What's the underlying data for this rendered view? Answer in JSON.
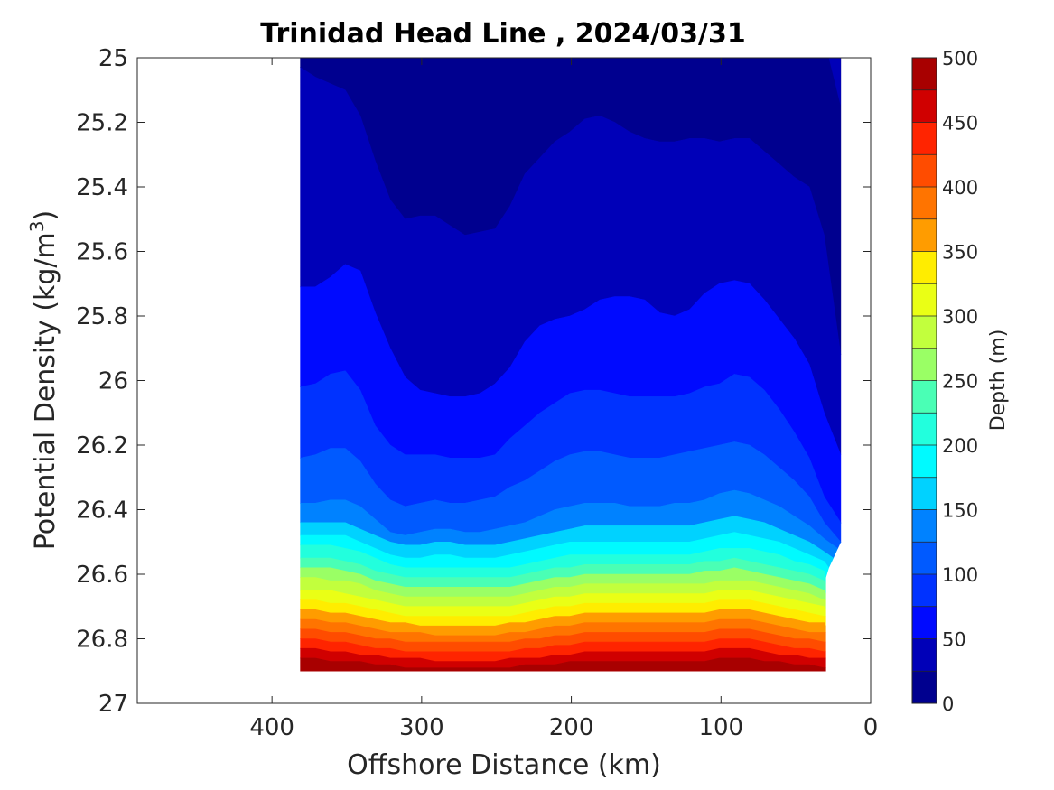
{
  "chart_data": {
    "type": "contour",
    "title": "Trinidad Head Line , 2024/03/31",
    "xlabel": "Offshore Distance (km)",
    "ylabel_main": "Potential Density (kg/m",
    "ylabel_sup": "3",
    "ylabel_close": ")",
    "xlim": [
      490,
      0
    ],
    "ylim": [
      25,
      27
    ],
    "x_reversed": true,
    "y_reversed": true,
    "xticks": [
      400,
      300,
      200,
      100,
      0
    ],
    "xtick_labels": [
      "400",
      "300",
      "200",
      "100",
      "0"
    ],
    "yticks": [
      25,
      25.2,
      25.4,
      25.6,
      25.8,
      26,
      26.2,
      26.4,
      26.6,
      26.8,
      27
    ],
    "ytick_labels": [
      "25",
      "25.2",
      "25.4",
      "25.6",
      "25.8",
      "26",
      "26.2",
      "26.4",
      "26.6",
      "26.8",
      "27"
    ],
    "colorbar": {
      "label": "Depth (m)",
      "min": 0,
      "max": 500,
      "ticks": [
        0,
        50,
        100,
        150,
        200,
        250,
        300,
        350,
        400,
        450,
        500
      ],
      "tick_labels": [
        "0",
        "50",
        "100",
        "150",
        "200",
        "250",
        "300",
        "350",
        "400",
        "450",
        "500"
      ],
      "levels": [
        0,
        25,
        50,
        75,
        100,
        125,
        150,
        175,
        200,
        225,
        250,
        275,
        300,
        325,
        350,
        375,
        400,
        425,
        450,
        475,
        500
      ],
      "colors": [
        "#00008f",
        "#0000b8",
        "#0000e0",
        "#000aff",
        "#0032ff",
        "#005aff",
        "#0082ff",
        "#00aaff",
        "#00d2ff",
        "#00faff",
        "#22ffdd",
        "#4affb5",
        "#72ff8d",
        "#9aff65",
        "#c2ff3d",
        "#eaff15",
        "#ffed00",
        "#ffc400",
        "#ff9c00",
        "#ff7400",
        "#ff4c00",
        "#ff2400",
        "#f90000",
        "#d00000",
        "#a80000"
      ]
    },
    "data_extent": {
      "x_offshore_edge": 381,
      "x_shore_top": 20,
      "x_shore_bottom": 30,
      "shore_notch_sigma": [
        26.5,
        26.6
      ],
      "sigma_top": 25,
      "sigma_bottom": 26.9
    },
    "isopycnal_depths": {
      "x": [
        381,
        371,
        361,
        351,
        341,
        331,
        321,
        311,
        301,
        291,
        281,
        271,
        261,
        251,
        241,
        231,
        221,
        211,
        201,
        191,
        181,
        171,
        161,
        151,
        141,
        131,
        121,
        111,
        101,
        91,
        81,
        71,
        61,
        51,
        41,
        31,
        21
      ],
      "contours": [
        {
          "depth": 25,
          "sigma": [
            25.03,
            25.06,
            25.08,
            25.1,
            25.18,
            25.32,
            25.44,
            25.5,
            25.49,
            25.49,
            25.52,
            25.55,
            25.54,
            25.53,
            25.46,
            25.36,
            25.31,
            25.26,
            25.23,
            25.19,
            25.18,
            25.2,
            25.23,
            25.25,
            25.26,
            25.26,
            25.25,
            25.25,
            25.26,
            25.25,
            25.25,
            25.29,
            25.33,
            25.37,
            25.4,
            25.55,
            25.92
          ]
        },
        {
          "depth": 50,
          "sigma": [
            25.71,
            25.71,
            25.68,
            25.64,
            25.66,
            25.79,
            25.9,
            25.99,
            26.03,
            26.04,
            26.05,
            26.05,
            26.04,
            26.01,
            25.96,
            25.88,
            25.83,
            25.81,
            25.8,
            25.78,
            25.75,
            25.74,
            25.74,
            25.75,
            25.79,
            25.8,
            25.78,
            25.73,
            25.7,
            25.69,
            25.7,
            25.75,
            25.81,
            25.87,
            25.95,
            26.1,
            26.23
          ]
        },
        {
          "depth": 75,
          "sigma": [
            26.02,
            26.01,
            25.98,
            25.97,
            26.03,
            26.14,
            26.2,
            26.23,
            26.23,
            26.23,
            26.24,
            26.24,
            26.24,
            26.23,
            26.18,
            26.14,
            26.1,
            26.07,
            26.04,
            26.03,
            26.03,
            26.04,
            26.05,
            26.05,
            26.05,
            26.05,
            26.04,
            26.02,
            26.01,
            25.98,
            25.99,
            26.03,
            26.09,
            26.16,
            26.24,
            26.36,
            26.44
          ]
        },
        {
          "depth": 100,
          "sigma": [
            26.24,
            26.23,
            26.21,
            26.21,
            26.25,
            26.32,
            26.37,
            26.39,
            26.38,
            26.37,
            26.38,
            26.38,
            26.37,
            26.36,
            26.33,
            26.31,
            26.28,
            26.25,
            26.23,
            26.22,
            26.22,
            26.23,
            26.24,
            26.24,
            26.24,
            26.23,
            26.22,
            26.21,
            26.2,
            26.19,
            26.2,
            26.23,
            26.27,
            26.31,
            26.36,
            26.44,
            26.5
          ]
        },
        {
          "depth": 125,
          "sigma": [
            26.38,
            26.38,
            26.37,
            26.37,
            26.39,
            26.43,
            26.47,
            26.48,
            26.47,
            26.46,
            26.46,
            26.47,
            26.47,
            26.46,
            26.45,
            26.44,
            26.42,
            26.4,
            26.39,
            26.38,
            26.38,
            26.38,
            26.39,
            26.39,
            26.39,
            26.38,
            26.38,
            26.37,
            26.35,
            26.34,
            26.35,
            26.37,
            26.39,
            26.42,
            26.45,
            26.49,
            26.52
          ]
        },
        {
          "depth": 150,
          "sigma": [
            26.44,
            26.44,
            26.44,
            26.44,
            26.46,
            26.48,
            26.5,
            26.51,
            26.51,
            26.5,
            26.5,
            26.51,
            26.51,
            26.51,
            26.5,
            26.49,
            26.48,
            26.47,
            26.46,
            26.45,
            26.45,
            26.45,
            26.45,
            26.45,
            26.45,
            26.45,
            26.45,
            26.44,
            26.43,
            26.42,
            26.43,
            26.44,
            26.46,
            26.48,
            26.5,
            26.53,
            26.55
          ]
        },
        {
          "depth": 175,
          "sigma": [
            26.48,
            26.48,
            26.48,
            26.48,
            26.5,
            26.52,
            26.54,
            26.55,
            26.55,
            26.54,
            26.54,
            26.55,
            26.55,
            26.55,
            26.54,
            26.53,
            26.52,
            26.51,
            26.5,
            26.5,
            26.5,
            26.5,
            26.5,
            26.5,
            26.5,
            26.5,
            26.5,
            26.49,
            26.48,
            26.47,
            26.48,
            26.49,
            26.5,
            26.52,
            26.54,
            26.56,
            26.58
          ]
        },
        {
          "depth": 200,
          "sigma": [
            26.51,
            26.51,
            26.51,
            26.52,
            26.53,
            26.55,
            26.57,
            26.58,
            26.58,
            26.58,
            26.58,
            26.58,
            26.58,
            26.58,
            26.58,
            26.57,
            26.56,
            26.55,
            26.54,
            26.54,
            26.54,
            26.54,
            26.54,
            26.54,
            26.54,
            26.54,
            26.54,
            26.53,
            26.52,
            26.52,
            26.52,
            26.53,
            26.54,
            26.56,
            26.57,
            26.59,
            26.61
          ]
        },
        {
          "depth": 225,
          "sigma": [
            26.55,
            26.55,
            26.55,
            26.56,
            26.57,
            26.59,
            26.6,
            26.61,
            26.61,
            26.61,
            26.61,
            26.61,
            26.61,
            26.61,
            26.61,
            26.6,
            26.59,
            26.58,
            26.58,
            26.57,
            26.57,
            26.57,
            26.57,
            26.57,
            26.57,
            26.57,
            26.57,
            26.56,
            26.56,
            26.55,
            26.56,
            26.57,
            26.58,
            26.59,
            26.6,
            26.62,
            26.63
          ]
        },
        {
          "depth": 250,
          "sigma": [
            26.58,
            26.58,
            26.58,
            26.59,
            26.6,
            26.62,
            26.63,
            26.64,
            26.64,
            26.64,
            26.64,
            26.64,
            26.64,
            26.64,
            26.64,
            26.63,
            26.62,
            26.61,
            26.61,
            26.6,
            26.6,
            26.6,
            26.6,
            26.6,
            26.6,
            26.6,
            26.6,
            26.59,
            26.59,
            26.58,
            26.59,
            26.6,
            26.61,
            26.62,
            26.63,
            26.65,
            26.66
          ]
        },
        {
          "depth": 275,
          "sigma": [
            26.61,
            26.61,
            26.62,
            26.62,
            26.63,
            26.65,
            26.66,
            26.67,
            26.67,
            26.67,
            26.67,
            26.67,
            26.67,
            26.67,
            26.67,
            26.66,
            26.65,
            26.64,
            26.64,
            26.63,
            26.63,
            26.63,
            26.63,
            26.63,
            26.63,
            26.63,
            26.63,
            26.63,
            26.62,
            26.62,
            26.62,
            26.63,
            26.64,
            26.65,
            26.66,
            26.68,
            26.68
          ]
        },
        {
          "depth": 300,
          "sigma": [
            26.65,
            26.65,
            26.65,
            26.66,
            26.67,
            26.68,
            26.69,
            26.7,
            26.7,
            26.7,
            26.7,
            26.7,
            26.7,
            26.7,
            26.7,
            26.69,
            26.68,
            26.67,
            26.67,
            26.66,
            26.66,
            26.66,
            26.66,
            26.66,
            26.66,
            26.66,
            26.66,
            26.66,
            26.65,
            26.65,
            26.65,
            26.66,
            26.67,
            26.68,
            26.69,
            26.7,
            26.71
          ]
        },
        {
          "depth": 325,
          "sigma": [
            26.68,
            26.68,
            26.69,
            26.69,
            26.7,
            26.71,
            26.72,
            26.73,
            26.73,
            26.73,
            26.73,
            26.73,
            26.73,
            26.73,
            26.73,
            26.72,
            26.71,
            26.7,
            26.7,
            26.69,
            26.69,
            26.69,
            26.69,
            26.69,
            26.69,
            26.69,
            26.69,
            26.69,
            26.68,
            26.68,
            26.68,
            26.69,
            26.7,
            26.71,
            26.72,
            26.73,
            26.73
          ]
        },
        {
          "depth": 350,
          "sigma": [
            26.71,
            26.71,
            26.72,
            26.72,
            26.73,
            26.74,
            26.75,
            26.75,
            26.76,
            26.76,
            26.76,
            26.76,
            26.76,
            26.76,
            26.75,
            26.75,
            26.74,
            26.73,
            26.73,
            26.72,
            26.72,
            26.72,
            26.72,
            26.72,
            26.72,
            26.72,
            26.72,
            26.72,
            26.71,
            26.71,
            26.71,
            26.72,
            26.73,
            26.74,
            26.75,
            26.75,
            26.76
          ]
        },
        {
          "depth": 375,
          "sigma": [
            26.74,
            26.74,
            26.75,
            26.75,
            26.76,
            26.77,
            26.78,
            26.78,
            26.78,
            26.79,
            26.79,
            26.79,
            26.79,
            26.79,
            26.78,
            26.78,
            26.77,
            26.76,
            26.76,
            26.75,
            26.75,
            26.75,
            26.75,
            26.75,
            26.75,
            26.75,
            26.75,
            26.75,
            26.74,
            26.74,
            26.74,
            26.75,
            26.76,
            26.77,
            26.78,
            26.78,
            26.78
          ]
        },
        {
          "depth": 400,
          "sigma": [
            26.77,
            26.77,
            26.78,
            26.78,
            26.79,
            26.8,
            26.8,
            26.81,
            26.81,
            26.81,
            26.81,
            26.81,
            26.81,
            26.81,
            26.81,
            26.8,
            26.8,
            26.79,
            26.79,
            26.78,
            26.78,
            26.78,
            26.78,
            26.78,
            26.78,
            26.78,
            26.78,
            26.78,
            26.77,
            26.77,
            26.77,
            26.78,
            26.79,
            26.8,
            26.8,
            26.81,
            26.81
          ]
        },
        {
          "depth": 425,
          "sigma": [
            26.8,
            26.8,
            26.81,
            26.81,
            26.82,
            26.83,
            26.83,
            26.84,
            26.84,
            26.84,
            26.84,
            26.84,
            26.84,
            26.84,
            26.84,
            26.83,
            26.83,
            26.82,
            26.82,
            26.81,
            26.81,
            26.81,
            26.81,
            26.81,
            26.81,
            26.81,
            26.81,
            26.81,
            26.8,
            26.8,
            26.8,
            26.81,
            26.82,
            26.83,
            26.83,
            26.84,
            26.84
          ]
        },
        {
          "depth": 450,
          "sigma": [
            26.83,
            26.83,
            26.84,
            26.84,
            26.85,
            26.85,
            26.86,
            26.86,
            26.86,
            26.87,
            26.87,
            26.87,
            26.87,
            26.87,
            26.86,
            26.86,
            26.86,
            26.85,
            26.85,
            26.84,
            26.84,
            26.84,
            26.84,
            26.84,
            26.84,
            26.84,
            26.84,
            26.84,
            26.83,
            26.83,
            26.83,
            26.84,
            26.85,
            26.85,
            26.86,
            26.86,
            26.86
          ]
        },
        {
          "depth": 475,
          "sigma": [
            26.86,
            26.86,
            26.87,
            26.87,
            26.87,
            26.88,
            26.88,
            26.89,
            26.89,
            26.89,
            26.89,
            26.89,
            26.89,
            26.89,
            26.89,
            26.88,
            26.88,
            26.88,
            26.87,
            26.87,
            26.87,
            26.87,
            26.87,
            26.87,
            26.87,
            26.87,
            26.87,
            26.87,
            26.86,
            26.86,
            26.86,
            26.87,
            26.87,
            26.88,
            26.88,
            26.89,
            26.89
          ]
        }
      ]
    }
  }
}
